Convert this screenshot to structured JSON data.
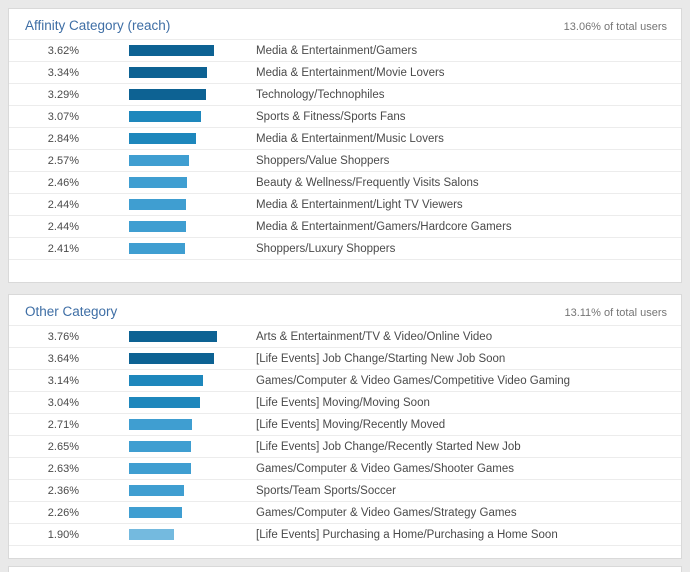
{
  "colors": {
    "bar_dark": "#0d6293",
    "bar_medium": "#1e87bc",
    "bar_light": "#3f9ed1",
    "bar_lightest": "#74badf",
    "section_title": "#3e6ea5"
  },
  "chart_data": [
    {
      "type": "bar",
      "orientation": "horizontal",
      "title": "Affinity Category (reach)",
      "total_label": "13.06% of total users",
      "xlim": [
        0,
        4
      ],
      "categories": [
        "Media & Entertainment/Gamers",
        "Media & Entertainment/Movie Lovers",
        "Technology/Technophiles",
        "Sports & Fitness/Sports Fans",
        "Media & Entertainment/Music Lovers",
        "Shoppers/Value Shoppers",
        "Beauty & Wellness/Frequently Visits Salons",
        "Media & Entertainment/Light TV Viewers",
        "Media & Entertainment/Gamers/Hardcore Gamers",
        "Shoppers/Luxury Shoppers"
      ],
      "values": [
        3.62,
        3.34,
        3.29,
        3.07,
        2.84,
        2.57,
        2.46,
        2.44,
        2.44,
        2.41
      ],
      "value_labels": [
        "3.62%",
        "3.34%",
        "3.29%",
        "3.07%",
        "2.84%",
        "2.57%",
        "2.46%",
        "2.44%",
        "2.44%",
        "2.41%"
      ],
      "bar_colors": [
        "#0d6293",
        "#0d6293",
        "#0d6293",
        "#1e87bc",
        "#1e87bc",
        "#3f9ed1",
        "#3f9ed1",
        "#3f9ed1",
        "#3f9ed1",
        "#3f9ed1"
      ]
    },
    {
      "type": "bar",
      "orientation": "horizontal",
      "title": "Other Category",
      "total_label": "13.11% of total users",
      "xlim": [
        0,
        4
      ],
      "categories": [
        "Arts & Entertainment/TV & Video/Online Video",
        "[Life Events] Job Change/Starting New Job Soon",
        "Games/Computer & Video Games/Competitive Video Gaming",
        "[Life Events] Moving/Moving Soon",
        "[Life Events] Moving/Recently Moved",
        "[Life Events] Job Change/Recently Started New Job",
        "Games/Computer & Video Games/Shooter Games",
        "Sports/Team Sports/Soccer",
        "Games/Computer & Video Games/Strategy Games",
        "[Life Events] Purchasing a Home/Purchasing a Home Soon"
      ],
      "values": [
        3.76,
        3.64,
        3.14,
        3.04,
        2.71,
        2.65,
        2.63,
        2.36,
        2.26,
        1.9
      ],
      "value_labels": [
        "3.76%",
        "3.64%",
        "3.14%",
        "3.04%",
        "2.71%",
        "2.65%",
        "2.63%",
        "2.36%",
        "2.26%",
        "1.90%"
      ],
      "bar_colors": [
        "#0d6293",
        "#0d6293",
        "#1e87bc",
        "#1e87bc",
        "#3f9ed1",
        "#3f9ed1",
        "#3f9ed1",
        "#3f9ed1",
        "#3f9ed1",
        "#74badf"
      ]
    }
  ]
}
